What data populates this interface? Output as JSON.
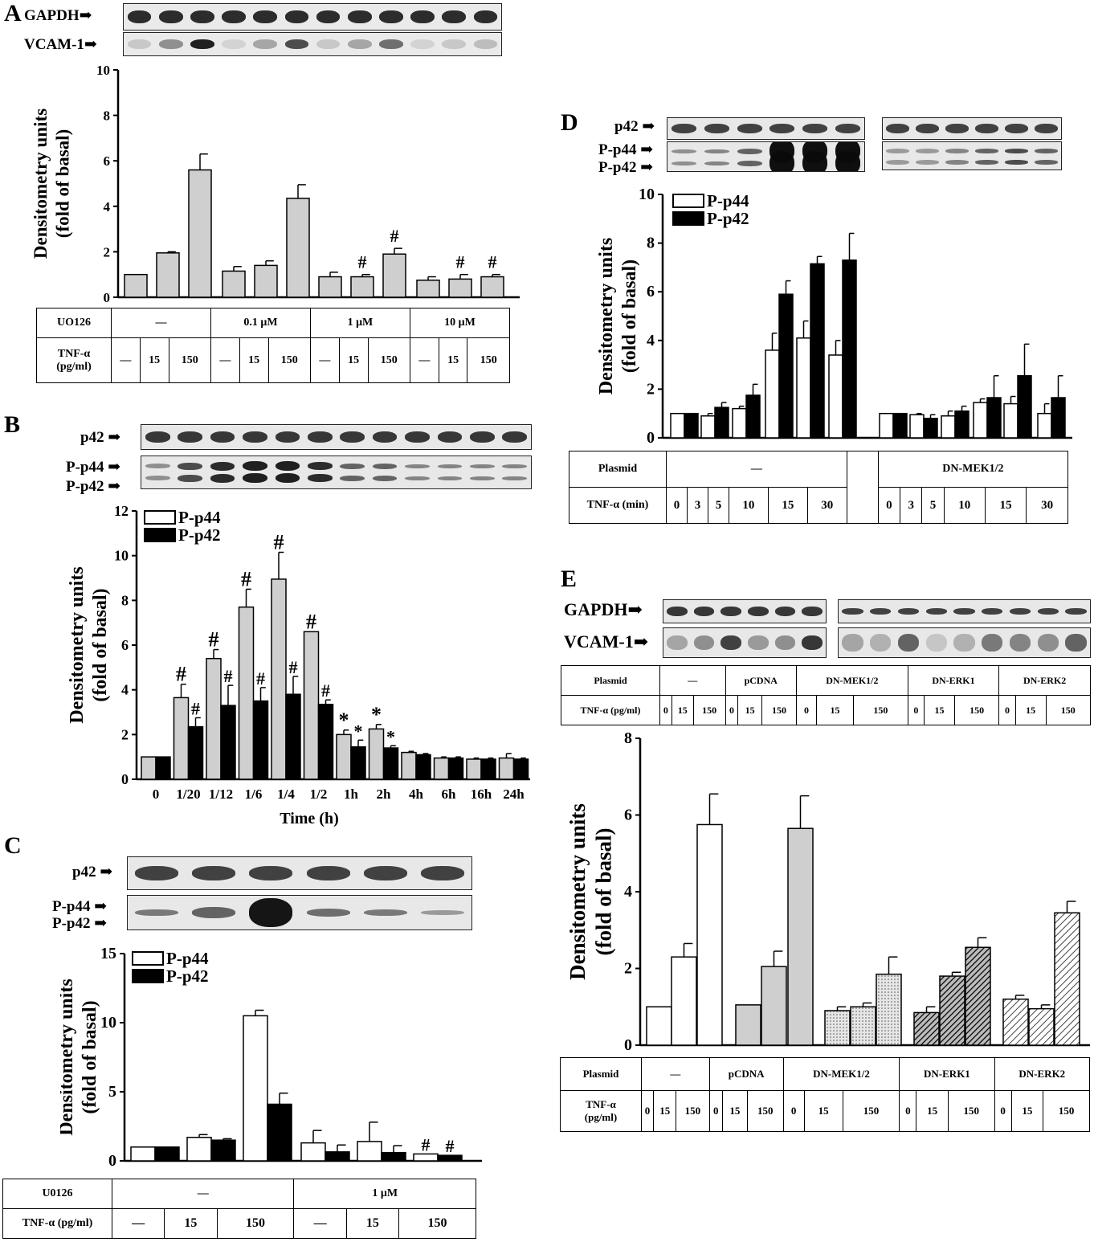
{
  "panels": {
    "A": {
      "label": "A",
      "blots": {
        "top": "GAPDH",
        "bottom": "VCAM-1"
      },
      "table": {
        "row1_head": "UO126",
        "row2_head": "TNF-α\n(pg/ml)",
        "groups": [
          "—",
          "0.1 μM",
          "1 μM",
          "10 μM"
        ],
        "doses": [
          "—",
          "15",
          "150",
          "—",
          "15",
          "150",
          "—",
          "15",
          "150",
          "—",
          "15",
          "150"
        ]
      }
    },
    "B": {
      "label": "B",
      "blots": {
        "top": "p42",
        "mid1": "P-p44",
        "mid2": "P-p42"
      },
      "xlabel": "Time (h)"
    },
    "C": {
      "label": "C",
      "blots": {
        "top": "p42",
        "mid1": "P-p44",
        "mid2": "P-p42"
      },
      "table": {
        "row1_head": "U0126",
        "row2_head": "TNF-α (pg/ml)",
        "groups": [
          "—",
          "1 μM"
        ],
        "doses": [
          "—",
          "15",
          "150",
          "—",
          "15",
          "150"
        ]
      }
    },
    "D": {
      "label": "D",
      "blots": {
        "top": "p42",
        "mid1": "P-p44",
        "mid2": "P-p42"
      },
      "table": {
        "row1_head": "Plasmid",
        "row2_head": "TNF-α (min)",
        "groups": [
          "—",
          "DN-MEK1/2"
        ],
        "doses": [
          "0",
          "3",
          "5",
          "10",
          "15",
          "30",
          "0",
          "3",
          "5",
          "10",
          "15",
          "30"
        ]
      }
    },
    "E": {
      "label": "E",
      "blots": {
        "top": "GAPDH",
        "bottom": "VCAM-1"
      },
      "table": {
        "row1_head": "Plasmid",
        "row2_head": "TNF-α (pg/ml)",
        "groups": [
          "—",
          "pCDNA",
          "DN-MEK1/2",
          "DN-ERK1",
          "DN-ERK2"
        ],
        "doses": [
          "0",
          "15",
          "150",
          "0",
          "15",
          "150",
          "0",
          "15",
          "150",
          "0",
          "15",
          "150",
          "0",
          "15",
          "150"
        ]
      },
      "table2": {
        "row1_head": "Plasmid",
        "row2_head": "TNF-α\n(pg/ml)"
      }
    }
  },
  "chart_data": [
    {
      "id": "A",
      "type": "bar",
      "ylabel": "Densitometry units\n(fold of basal)",
      "ylim": [
        0,
        10
      ],
      "yticks": [
        "0",
        "2",
        "4",
        "6",
        "8",
        "10"
      ],
      "series": [
        {
          "values": [
            1.0,
            1.95,
            5.6,
            1.15,
            1.4,
            4.35,
            0.9,
            0.9,
            1.9,
            0.75,
            0.8,
            0.9
          ],
          "errors": [
            0,
            0.05,
            0.7,
            0.2,
            0.2,
            0.6,
            0.2,
            0.1,
            0.25,
            0.15,
            0.2,
            0.1
          ],
          "marks": [
            "",
            "",
            "",
            "",
            "",
            "",
            "",
            "#",
            "#",
            "",
            "#",
            "#"
          ]
        }
      ],
      "color": "#cfcfcf"
    },
    {
      "id": "B",
      "type": "bar",
      "ylabel": "Densitometry units\n(fold of basal)",
      "ylim": [
        0,
        12
      ],
      "xlabel": "Time (h)",
      "categories": [
        "0",
        "1/20",
        "1/12",
        "1/6",
        "1/4",
        "1/2",
        "1h",
        "2h",
        "4h",
        "6h",
        "16h",
        "24h"
      ],
      "yticks": [
        "0",
        "2",
        "4",
        "6",
        "8",
        "10",
        "12"
      ],
      "series": [
        {
          "name": "P-p44",
          "values": [
            1.0,
            3.65,
            5.4,
            7.7,
            8.95,
            6.6,
            2.0,
            2.25,
            1.2,
            0.95,
            0.9,
            0.95
          ],
          "errors": [
            0,
            0.6,
            0.4,
            0.8,
            1.2,
            0,
            0.2,
            0.2,
            0.05,
            0.05,
            0.05,
            0.2
          ],
          "marks": [
            "",
            "#",
            "#",
            "#",
            "#",
            "#",
            "*",
            "*",
            "",
            "",
            "",
            ""
          ]
        },
        {
          "name": "P-p42",
          "values": [
            1.0,
            2.35,
            3.3,
            3.5,
            3.8,
            3.35,
            1.45,
            1.4,
            1.1,
            0.95,
            0.9,
            0.9
          ],
          "errors": [
            0,
            0.4,
            0.9,
            0.6,
            0.8,
            0.2,
            0.3,
            0.1,
            0.05,
            0.05,
            0.05,
            0.05
          ],
          "marks": [
            "",
            "#",
            "#",
            "#",
            "#",
            "#",
            "*",
            "*",
            "",
            "",
            "",
            ""
          ]
        }
      ]
    },
    {
      "id": "C",
      "type": "bar",
      "ylabel": "Densitometry units\n(fold of basal)",
      "ylim": [
        0,
        15
      ],
      "yticks": [
        "0",
        "5",
        "10",
        "15"
      ],
      "series": [
        {
          "name": "P-p44",
          "values": [
            1.0,
            1.7,
            10.5,
            1.3,
            1.4,
            0.5
          ],
          "errors": [
            0,
            0.2,
            0.4,
            0.9,
            1.4,
            0
          ],
          "marks": [
            "",
            "",
            "",
            "",
            "",
            "#"
          ]
        },
        {
          "name": "P-p42",
          "values": [
            1.0,
            1.5,
            4.1,
            0.65,
            0.6,
            0.4
          ],
          "errors": [
            0,
            0.1,
            0.8,
            0.5,
            0.5,
            0
          ],
          "marks": [
            "",
            "",
            "",
            "",
            "",
            "#"
          ]
        }
      ]
    },
    {
      "id": "D",
      "type": "bar",
      "ylabel": "Densitometry units\n(fold of basal)",
      "ylim": [
        0,
        10
      ],
      "yticks": [
        "0",
        "2",
        "4",
        "6",
        "8",
        "10"
      ],
      "series": [
        {
          "name": "P-p44",
          "values": [
            1.0,
            0.9,
            1.2,
            3.6,
            4.1,
            3.4,
            1.0,
            0.95,
            0.9,
            1.45,
            1.4,
            1.0
          ],
          "errors": [
            0,
            0.1,
            0.1,
            0.7,
            0.7,
            0.6,
            0,
            0.05,
            0.2,
            0.15,
            0.3,
            0.4
          ]
        },
        {
          "name": "P-p42",
          "values": [
            1.0,
            1.25,
            1.75,
            5.9,
            7.15,
            7.3,
            1.0,
            0.8,
            1.1,
            1.65,
            2.55,
            1.65
          ],
          "errors": [
            0,
            0.2,
            0.45,
            0.55,
            0.3,
            1.1,
            0,
            0.15,
            0.2,
            0.9,
            1.3,
            0.9
          ]
        }
      ]
    },
    {
      "id": "E",
      "type": "bar",
      "ylabel": "Densitometry units\n(fold of basal)",
      "ylim": [
        0,
        8
      ],
      "yticks": [
        "0",
        "2",
        "4",
        "6",
        "8"
      ],
      "series": [
        {
          "values": [
            1.0,
            2.3,
            5.75,
            1.05,
            2.05,
            5.65,
            0.9,
            1.0,
            1.85,
            0.85,
            1.8,
            2.55,
            1.2,
            0.95,
            3.45
          ],
          "errors": [
            0,
            0.35,
            0.8,
            0,
            0.4,
            0.85,
            0.1,
            0.1,
            0.45,
            0.15,
            0.1,
            0.25,
            0.1,
            0.1,
            0.3
          ]
        }
      ],
      "groups": 5
    }
  ]
}
